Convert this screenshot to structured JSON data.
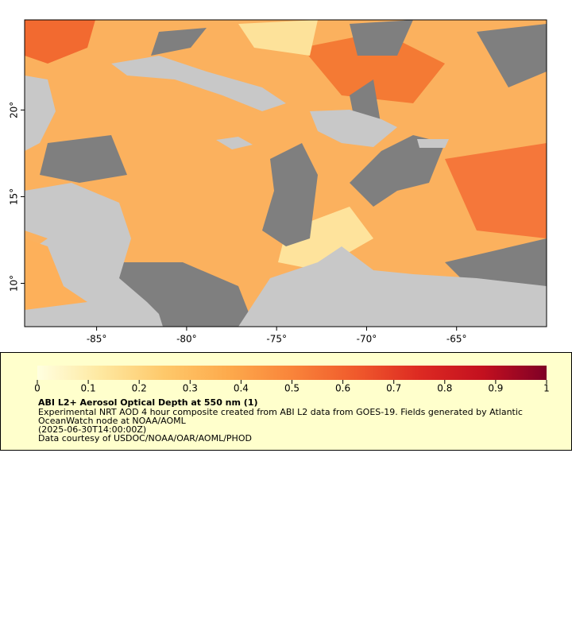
{
  "chart_data": {
    "type": "map",
    "xlim": [
      -89,
      -60
    ],
    "ylim": [
      7.5,
      25.2
    ],
    "xticks": [
      {
        "value": -85,
        "label": "-85°"
      },
      {
        "value": -80,
        "label": "-80°"
      },
      {
        "value": -75,
        "label": "-75°"
      },
      {
        "value": -70,
        "label": "-70°"
      },
      {
        "value": -65,
        "label": "-65°"
      }
    ],
    "yticks": [
      {
        "value": 10,
        "label": "10°"
      },
      {
        "value": 15,
        "label": "15°"
      },
      {
        "value": 20,
        "label": "20°"
      }
    ],
    "colorbar": {
      "lim": [
        0,
        1
      ],
      "ticks": [
        0,
        0.1,
        0.2,
        0.3,
        0.4,
        0.5,
        0.6,
        0.7,
        0.8,
        0.9,
        1
      ],
      "colors": [
        "#ffffe0",
        "#fee8a0",
        "#fec86a",
        "#fdaa4c",
        "#f9843a",
        "#f05a2c",
        "#dd2a22",
        "#c3101f",
        "#7f0026"
      ]
    },
    "legend": {
      "title": "ABI L2+ Aerosol Optical Depth at 550 nm (1)",
      "lines": [
        "Experimental NRT AOD 4 hour composite created from ABI L2 data from GOES-19. Fields generated by Atlantic",
        "OceanWatch node at NOAA/AOML",
        "(2025-06-30T14:00:00Z)",
        "Data courtesy of USDOC/NOAA/OAR/AOML/PHOD"
      ]
    }
  }
}
